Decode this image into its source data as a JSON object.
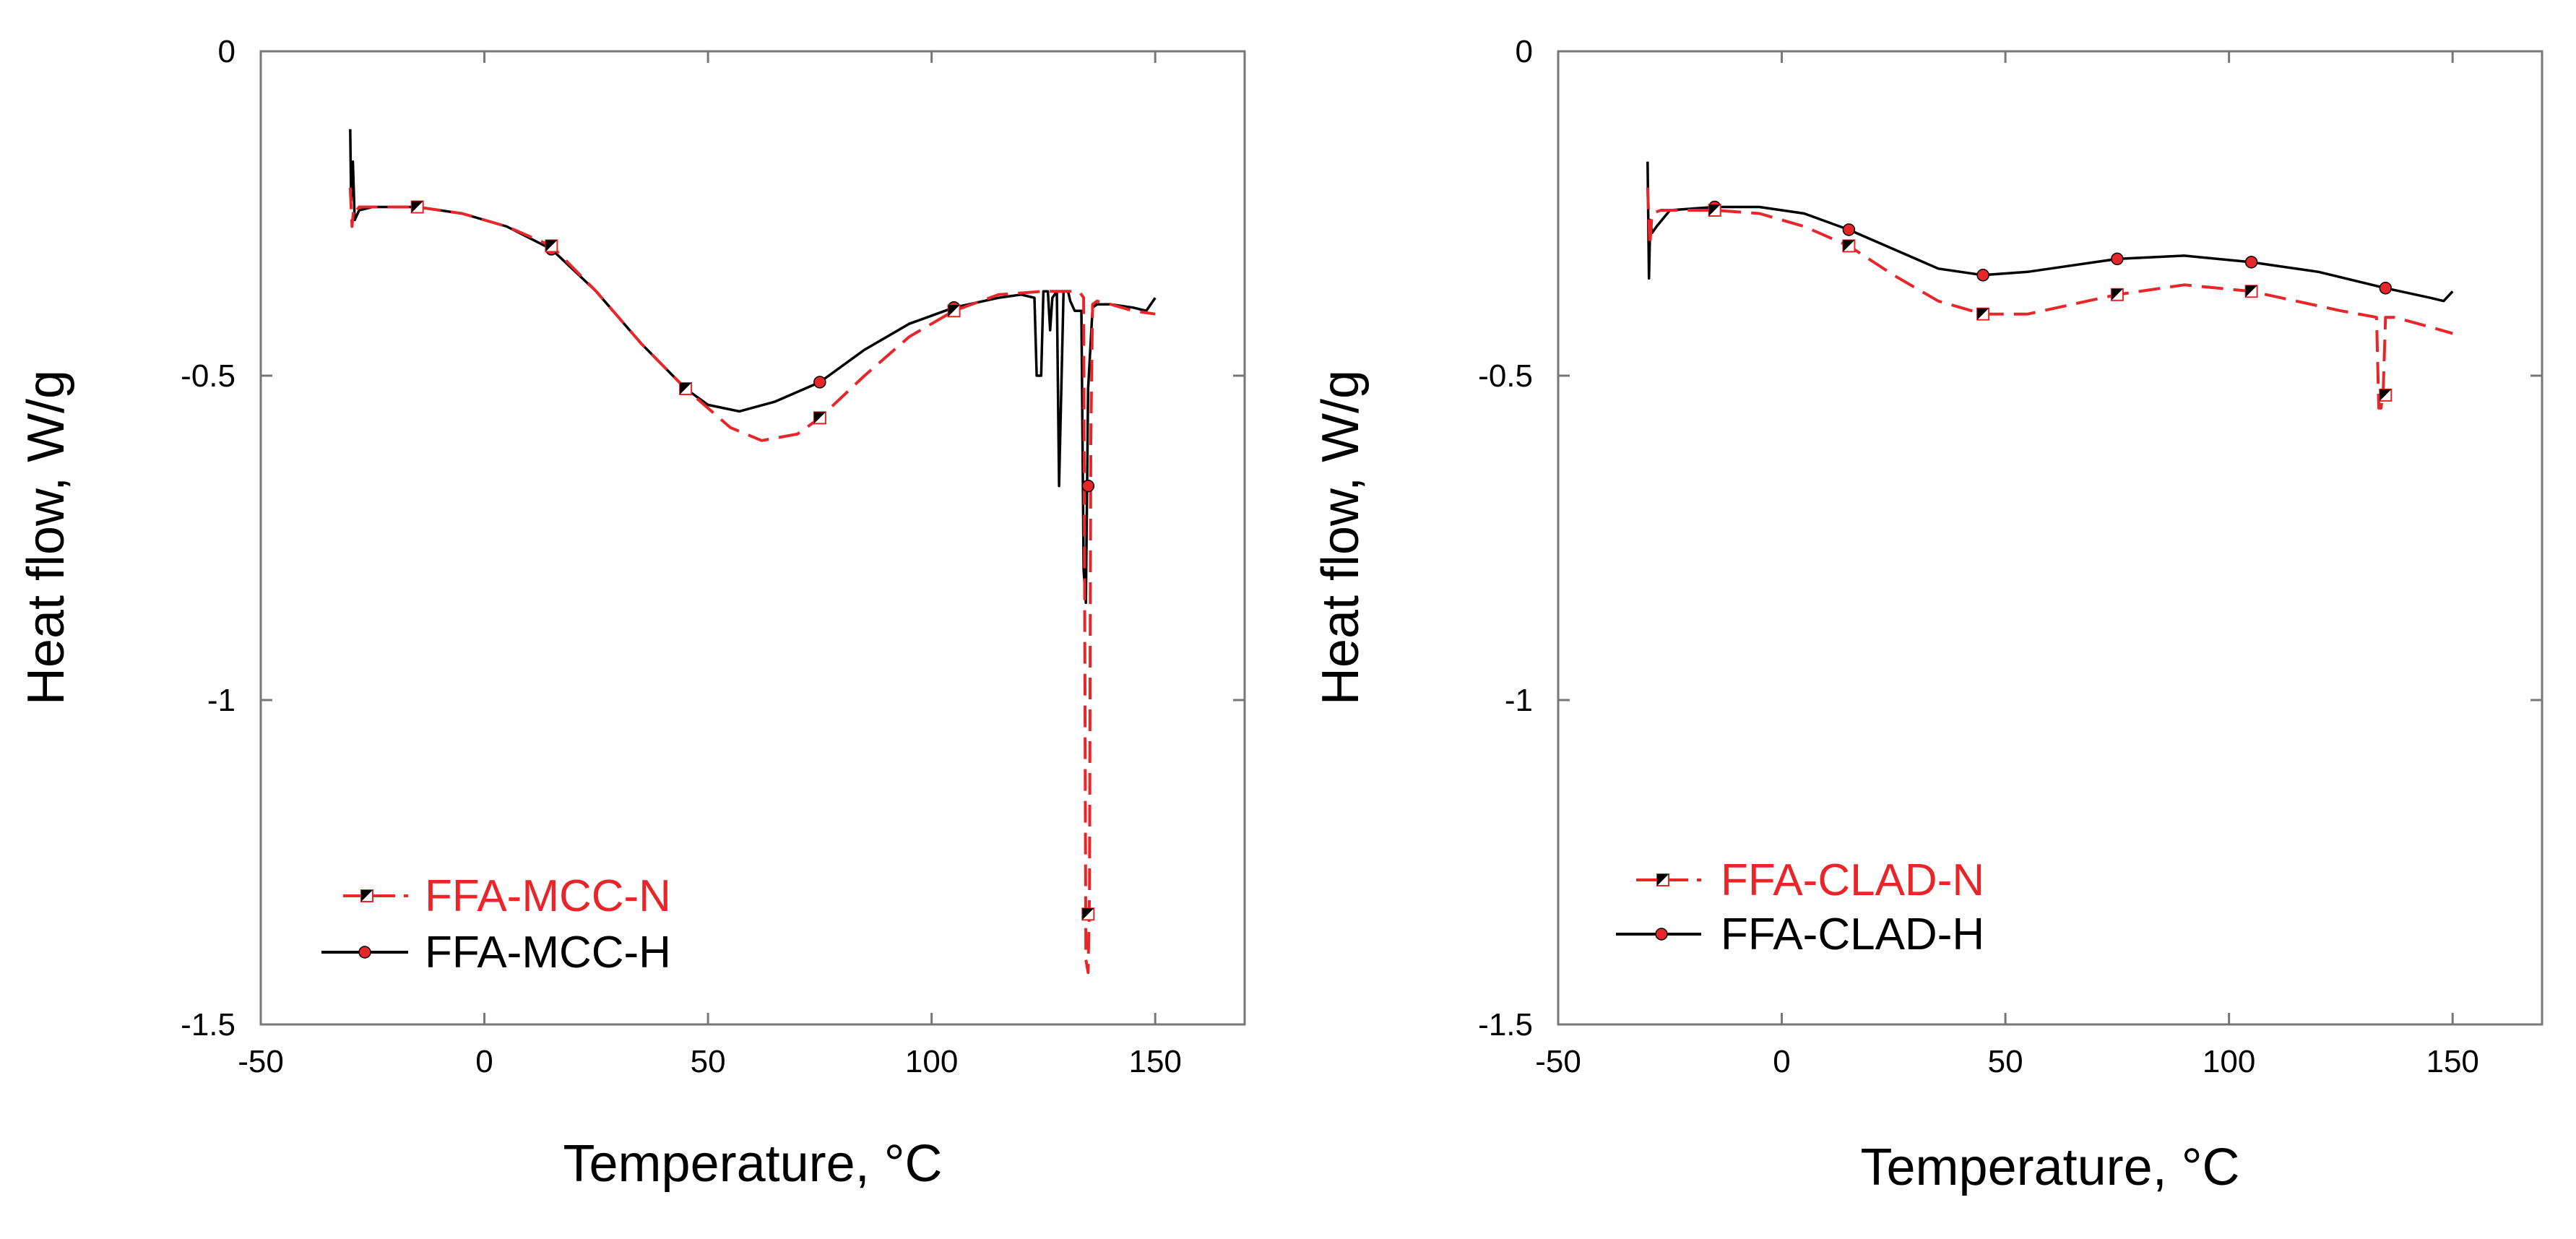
{
  "chart_data": [
    {
      "type": "line",
      "xlabel": "Temperature, °C",
      "ylabel": "Heat flow, W/g",
      "xlim": [
        -50,
        170
      ],
      "ylim": [
        -1.5,
        0
      ],
      "xticks": [
        -50,
        0,
        50,
        100,
        150
      ],
      "yticks": [
        0,
        -0.5,
        -1,
        -1.5
      ],
      "ytick_labels": [
        "0",
        "-0.5",
        "-1",
        "-1.5"
      ],
      "legend_position": "bottom-left",
      "series": [
        {
          "name": "FFA-MCC-N",
          "color": "#e8262a",
          "style": "dashed",
          "marker": "half-square",
          "x": [
            -30,
            -29.6,
            -29.2,
            -28.6,
            -28,
            -20,
            -15,
            -5,
            5,
            15,
            25,
            35,
            45,
            55,
            62,
            70,
            75,
            85,
            95,
            105,
            115,
            125,
            130,
            133,
            134,
            134.5,
            135,
            135.3,
            135.6,
            136,
            137,
            140,
            145,
            150
          ],
          "y": [
            -0.21,
            -0.27,
            -0.24,
            -0.245,
            -0.24,
            -0.24,
            -0.24,
            -0.25,
            -0.27,
            -0.3,
            -0.37,
            -0.45,
            -0.52,
            -0.58,
            -0.6,
            -0.59,
            -0.565,
            -0.5,
            -0.44,
            -0.4,
            -0.375,
            -0.37,
            -0.37,
            -0.37,
            -0.38,
            -1.4,
            -1.42,
            -1.3,
            -0.6,
            -0.39,
            -0.385,
            -0.39,
            -0.4,
            -0.405
          ],
          "marker_x": [
            -15,
            15,
            45,
            75,
            105,
            135
          ],
          "marker_y": [
            -0.24,
            -0.3,
            -0.52,
            -0.565,
            -0.4,
            -1.33
          ]
        },
        {
          "name": "FFA-MCC-H",
          "color": "#000000",
          "style": "solid",
          "marker": "red-dot",
          "x": [
            -30,
            -29.8,
            -29.4,
            -29,
            -28,
            -25,
            -15,
            -5,
            5,
            15,
            25,
            35,
            45,
            50,
            57,
            65,
            75,
            85,
            95,
            105,
            115,
            120,
            123,
            123.5,
            124.5,
            125,
            126,
            126.5,
            127,
            128,
            128.5,
            129.5,
            130.5,
            131,
            132,
            133.5,
            134,
            134.5,
            135,
            136,
            137,
            140,
            145,
            148,
            150
          ],
          "y": [
            -0.12,
            -0.23,
            -0.17,
            -0.26,
            -0.245,
            -0.24,
            -0.24,
            -0.25,
            -0.27,
            -0.305,
            -0.37,
            -0.45,
            -0.52,
            -0.545,
            -0.555,
            -0.54,
            -0.51,
            -0.46,
            -0.42,
            -0.395,
            -0.38,
            -0.375,
            -0.38,
            -0.5,
            -0.5,
            -0.37,
            -0.37,
            -0.43,
            -0.38,
            -0.37,
            -0.67,
            -0.37,
            -0.37,
            -0.385,
            -0.4,
            -0.4,
            -0.8,
            -0.85,
            -0.52,
            -0.395,
            -0.39,
            -0.39,
            -0.395,
            -0.4,
            -0.38
          ],
          "marker_x": [
            -15,
            15,
            45,
            75,
            105,
            135
          ],
          "marker_y": [
            -0.24,
            -0.305,
            -0.52,
            -0.51,
            -0.395,
            -0.67
          ]
        }
      ]
    },
    {
      "type": "line",
      "xlabel": "Temperature, °C",
      "ylabel": "Heat flow, W/g",
      "xlim": [
        -50,
        170
      ],
      "ylim": [
        -1.5,
        0
      ],
      "xticks": [
        -50,
        0,
        50,
        100,
        150
      ],
      "yticks": [
        0,
        -0.5,
        -1,
        -1.5
      ],
      "ytick_labels": [
        "0",
        "-0.5",
        "-1",
        "-1.5"
      ],
      "legend_position": "bottom-left",
      "series": [
        {
          "name": "FFA-CLAD-N",
          "color": "#e8262a",
          "style": "dashed",
          "marker": "half-square",
          "x": [
            -30,
            -29.5,
            -29,
            -27,
            -20,
            -15,
            -5,
            5,
            15,
            25,
            35,
            45,
            55,
            65,
            75,
            90,
            105,
            115,
            125,
            133,
            133.5,
            134,
            134.5,
            135,
            137,
            145,
            150
          ],
          "y": [
            -0.21,
            -0.3,
            -0.25,
            -0.245,
            -0.245,
            -0.245,
            -0.25,
            -0.27,
            -0.3,
            -0.345,
            -0.385,
            -0.405,
            -0.405,
            -0.39,
            -0.375,
            -0.36,
            -0.37,
            -0.385,
            -0.4,
            -0.41,
            -0.55,
            -0.55,
            -0.52,
            -0.41,
            -0.41,
            -0.425,
            -0.435
          ],
          "marker_x": [
            -15,
            15,
            45,
            75,
            105,
            135
          ],
          "marker_y": [
            -0.245,
            -0.3,
            -0.405,
            -0.375,
            -0.37,
            -0.53
          ]
        },
        {
          "name": "FFA-CLAD-H",
          "color": "#000000",
          "style": "solid",
          "marker": "red-dot",
          "x": [
            -30,
            -29.7,
            -29.4,
            -29,
            -28,
            -25,
            -15,
            -5,
            5,
            15,
            25,
            35,
            45,
            55,
            65,
            75,
            90,
            105,
            120,
            135,
            145,
            148,
            150
          ],
          "y": [
            -0.17,
            -0.35,
            -0.26,
            -0.28,
            -0.27,
            -0.245,
            -0.24,
            -0.24,
            -0.25,
            -0.275,
            -0.305,
            -0.335,
            -0.345,
            -0.34,
            -0.33,
            -0.32,
            -0.315,
            -0.325,
            -0.34,
            -0.365,
            -0.38,
            -0.385,
            -0.37
          ],
          "marker_x": [
            -15,
            15,
            45,
            75,
            105,
            135
          ],
          "marker_y": [
            -0.24,
            -0.275,
            -0.345,
            -0.32,
            -0.325,
            -0.365
          ]
        }
      ]
    }
  ]
}
